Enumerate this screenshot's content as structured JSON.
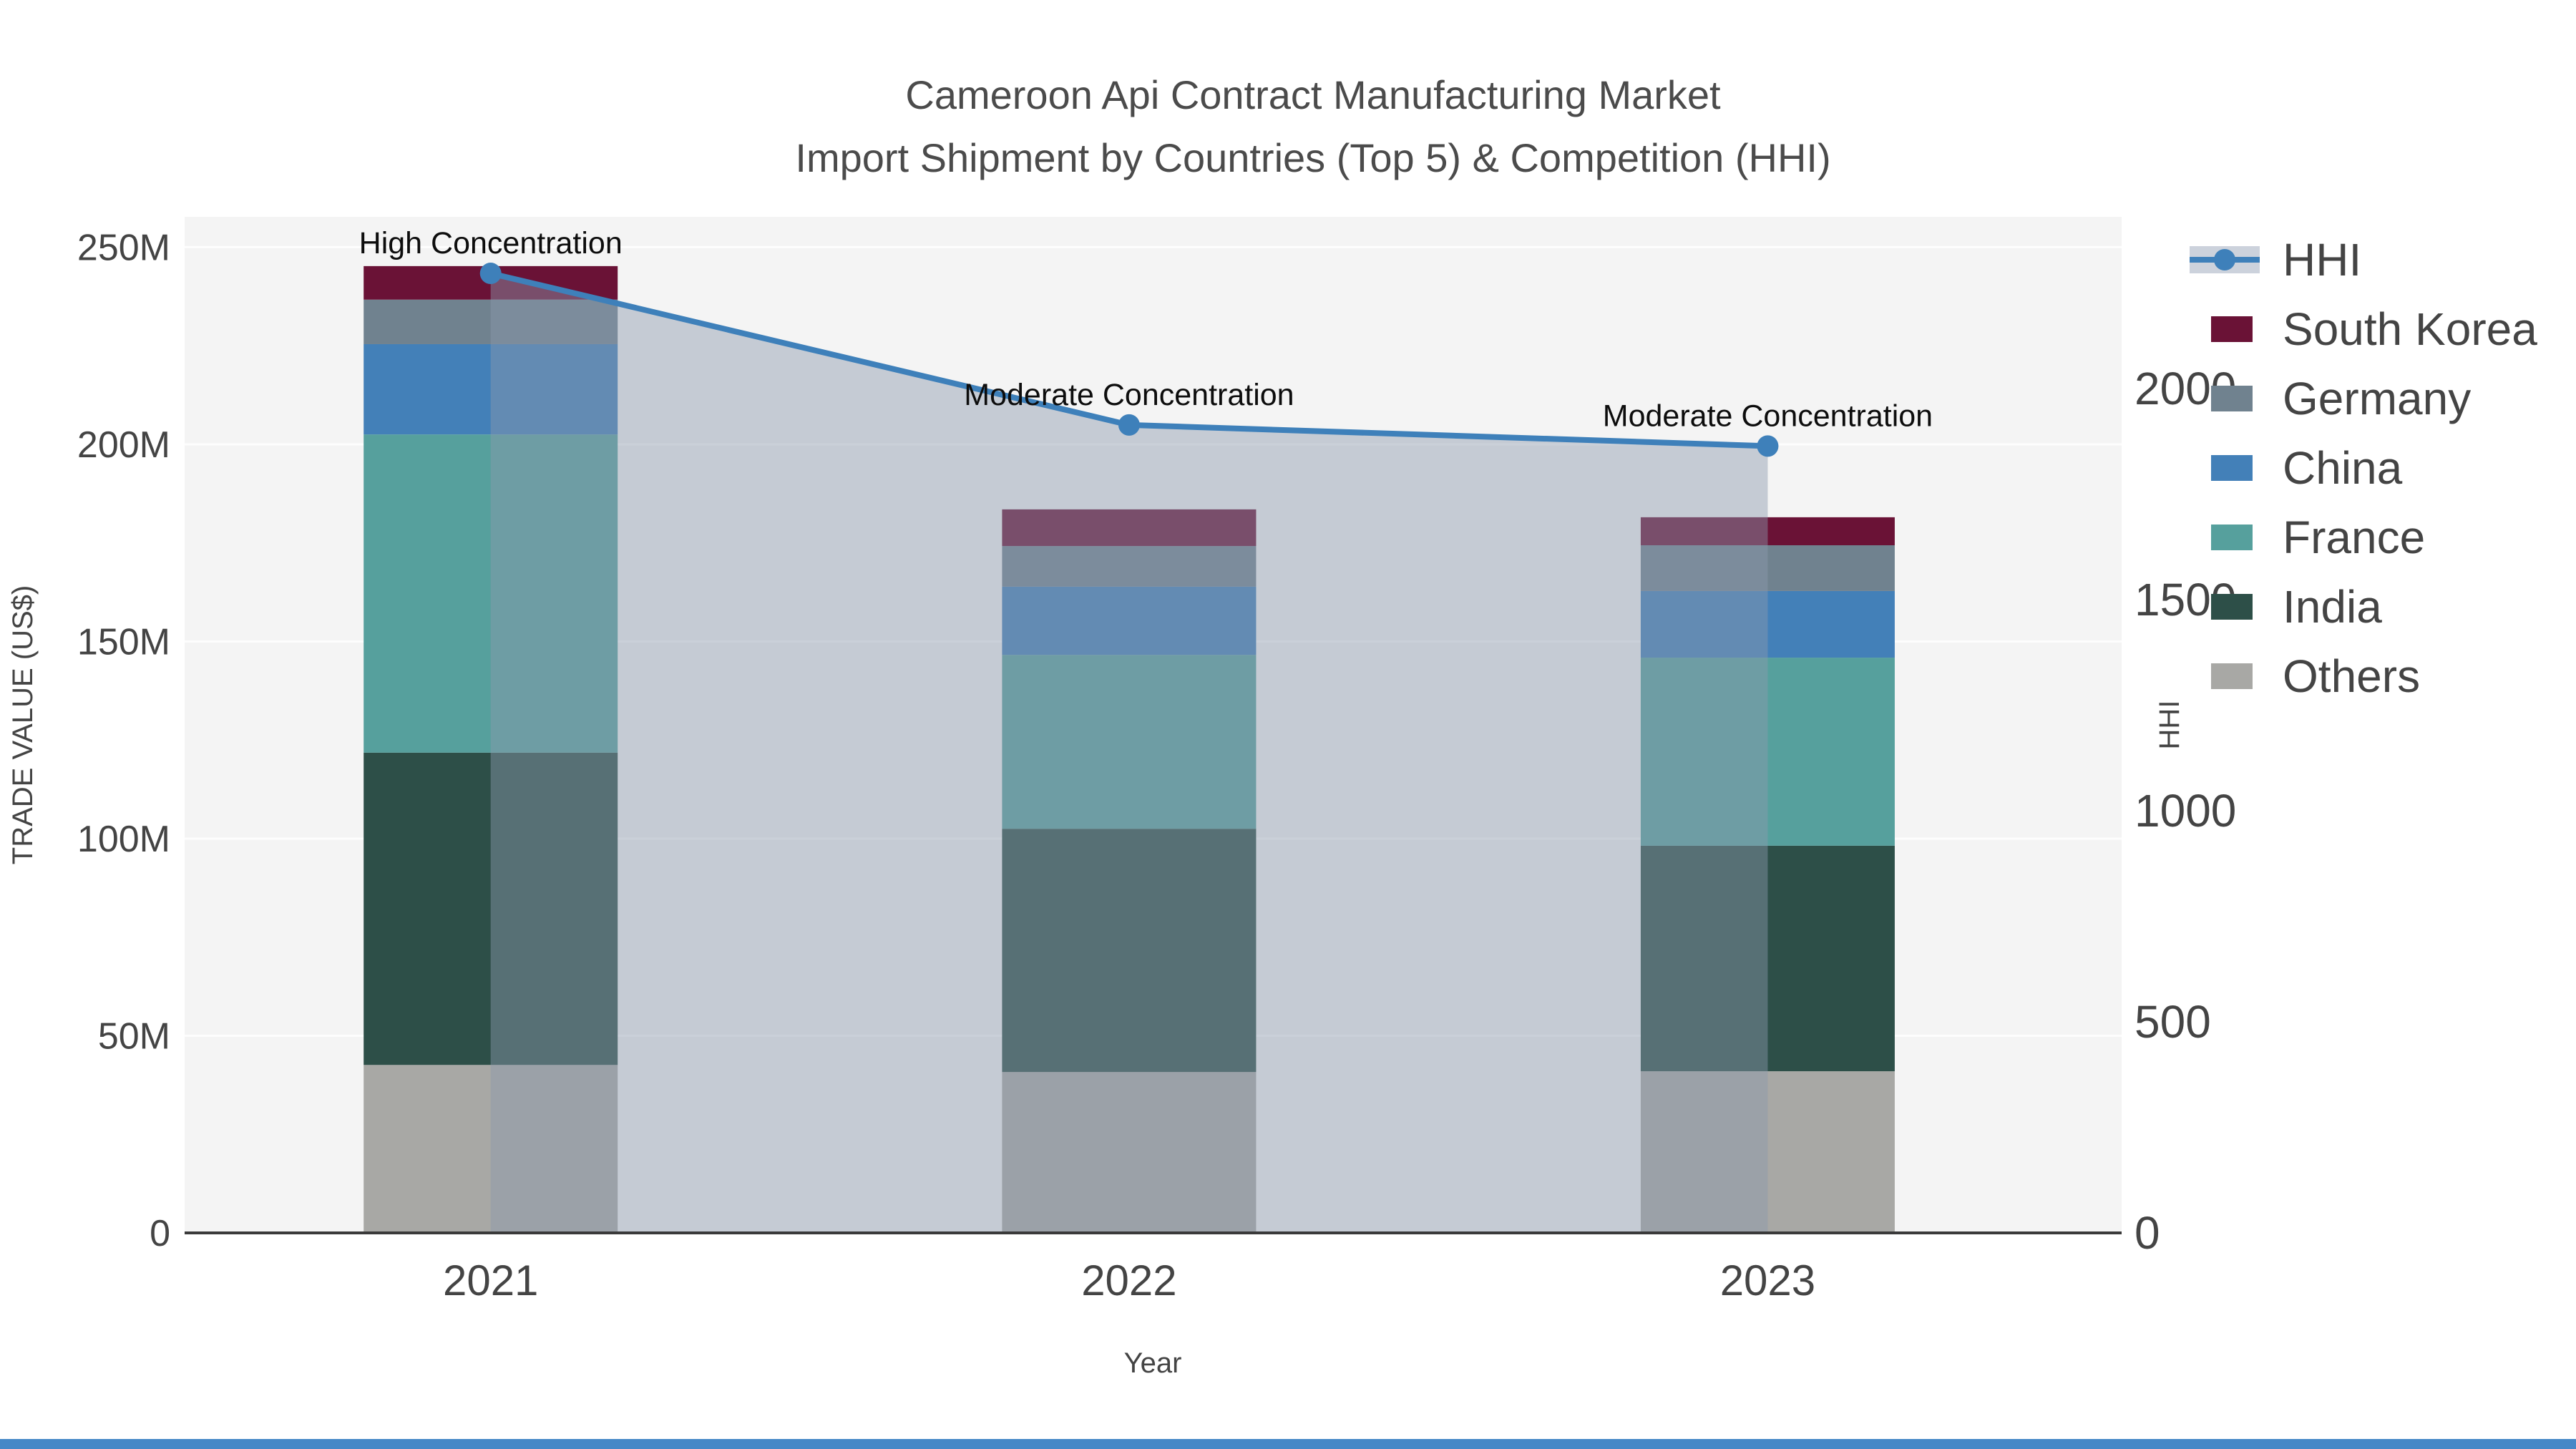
{
  "title": {
    "line1": "Cameroon Api Contract Manufacturing Market",
    "line2": "Import Shipment by Countries (Top 5) & Competition (HHI)"
  },
  "axes": {
    "x_title": "Year",
    "y_left_title": "TRADE VALUE (US$)",
    "y_right_title": "HHI",
    "x_tick_labels": [
      "2021",
      "2022",
      "2023"
    ],
    "y_left_tick_labels": [
      "0",
      "50M",
      "100M",
      "150M",
      "200M",
      "250M"
    ],
    "y_right_tick_labels": [
      "0",
      "500",
      "1000",
      "1500",
      "2000"
    ]
  },
  "legend": {
    "items": [
      {
        "label": "HHI",
        "type": "line",
        "color": "#3e80ba"
      },
      {
        "label": "South Korea",
        "type": "swatch",
        "color": "#6a1236"
      },
      {
        "label": "Germany",
        "type": "swatch",
        "color": "#70828f"
      },
      {
        "label": "China",
        "type": "swatch",
        "color": "#4380b8"
      },
      {
        "label": "France",
        "type": "swatch",
        "color": "#56a09d"
      },
      {
        "label": "India",
        "type": "swatch",
        "color": "#2d4f48"
      },
      {
        "label": "Others",
        "type": "swatch",
        "color": "#a8a8a5"
      }
    ]
  },
  "colors": {
    "plot_background": "#f4f4f4",
    "gridline": "#ffffff",
    "axis_line": "#3a3a3a",
    "tick_text": "#444444",
    "title_text": "#4b4b4b",
    "annotation_text": "#0d0d0d",
    "hhi_line": "#3e80ba",
    "hhi_area_fill": "rgba(140,152,172,0.45)",
    "bottom_bar": "#4688c7"
  },
  "chart_data": {
    "type": "bar+line",
    "title": "Cameroon Api Contract Manufacturing Market — Import Shipment by Countries (Top 5) & Competition (HHI)",
    "categories": [
      "2021",
      "2022",
      "2023"
    ],
    "bar_unit": "M US$ (trade value, millions)",
    "bar_stack_order_bottom_to_top": [
      "Others",
      "India",
      "France",
      "China",
      "Germany",
      "South Korea"
    ],
    "series": [
      {
        "name": "Others",
        "color": "#a8a8a5",
        "values": [
          42.6,
          40.8,
          41.0
        ]
      },
      {
        "name": "India",
        "color": "#2d4f48",
        "values": [
          79.2,
          61.7,
          57.2
        ]
      },
      {
        "name": "France",
        "color": "#56a09d",
        "values": [
          80.7,
          44.1,
          47.7
        ]
      },
      {
        "name": "China",
        "color": "#4380b8",
        "values": [
          22.9,
          17.3,
          16.9
        ]
      },
      {
        "name": "Germany",
        "color": "#70828f",
        "values": [
          11.3,
          10.3,
          11.6
        ]
      },
      {
        "name": "South Korea",
        "color": "#6a1236",
        "values": [
          8.5,
          9.3,
          7.1
        ]
      }
    ],
    "bar_totals": [
      245.2,
      183.5,
      181.5
    ],
    "line_series": {
      "name": "HHI",
      "color": "#3e80ba",
      "values": [
        2273,
        1914,
        1864
      ],
      "area_fill": true
    },
    "annotations": [
      {
        "category": "2021",
        "text": "High Concentration"
      },
      {
        "category": "2022",
        "text": "Moderate Concentration"
      },
      {
        "category": "2023",
        "text": "Moderate Concentration"
      }
    ],
    "xlabel": "Year",
    "ylabel_left": "TRADE VALUE (US$)",
    "ylabel_right": "HHI",
    "ylim_left": [
      0,
      257.7
    ],
    "ylim_right": [
      0,
      2407
    ],
    "yticks_left": [
      0,
      50,
      100,
      150,
      200,
      250
    ],
    "yticks_right": [
      0,
      500,
      1000,
      1500,
      2000
    ],
    "grid": true,
    "legend_position": "right"
  }
}
